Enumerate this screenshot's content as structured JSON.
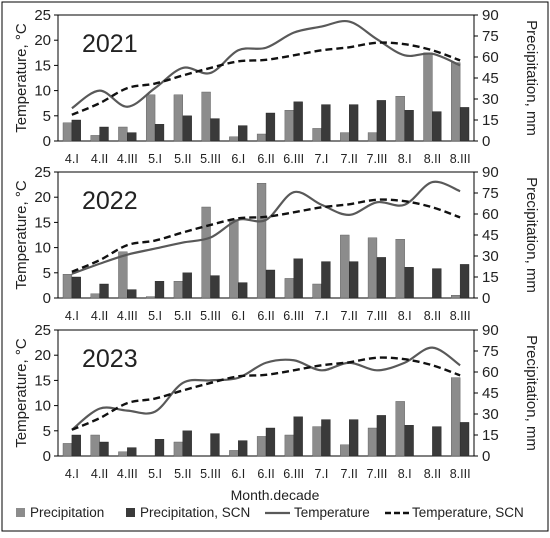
{
  "chart_data": [
    {
      "type": "bar+line",
      "title": "2021",
      "ylabel": "Temperature, °C",
      "y2label": "Precipitation, mm",
      "ylim": [
        0,
        25
      ],
      "y2lim": [
        0,
        90
      ],
      "yticks": [
        0,
        5,
        10,
        15,
        20,
        25
      ],
      "y2ticks": [
        0,
        15,
        30,
        45,
        60,
        75,
        90
      ],
      "categories": [
        "4.I",
        "4.II",
        "4.III",
        "5.I",
        "5.II",
        "5.III",
        "6.I",
        "6.II",
        "6.III",
        "7.I",
        "7.II",
        "7.III",
        "8.I",
        "8.II",
        "8.III"
      ],
      "series": [
        {
          "name": "Precipitation",
          "kind": "bar",
          "axis": "right",
          "values": [
            13,
            4,
            10,
            33,
            33,
            35,
            3,
            5,
            22,
            9,
            6,
            6,
            32,
            63,
            56
          ]
        },
        {
          "name": "Precipitation, SCN",
          "kind": "bar",
          "axis": "right",
          "values": [
            15,
            10,
            6,
            12,
            18,
            16,
            11,
            20,
            28,
            26,
            26,
            29,
            22,
            21,
            24
          ]
        },
        {
          "name": "Temperature",
          "kind": "line",
          "axis": "left",
          "values": [
            6.5,
            10,
            6.8,
            10.5,
            14.5,
            13.5,
            18,
            18.5,
            21.5,
            22.7,
            23.7,
            20.2,
            17,
            17.3,
            15
          ]
        },
        {
          "name": "Temperature, SCN",
          "kind": "dashed-line",
          "axis": "left",
          "values": [
            5.2,
            7.5,
            10.5,
            11.4,
            13,
            14.5,
            15.8,
            16.1,
            17,
            18,
            18.6,
            19.5,
            19.2,
            18,
            16
          ]
        }
      ],
      "grid": false
    },
    {
      "type": "bar+line",
      "title": "2022",
      "ylabel": "Temperature, °C",
      "y2label": "Precipitation, mm",
      "ylim": [
        0,
        25
      ],
      "y2lim": [
        0,
        90
      ],
      "yticks": [
        0,
        5,
        10,
        15,
        20,
        25
      ],
      "y2ticks": [
        0,
        15,
        30,
        45,
        60,
        75,
        90
      ],
      "categories": [
        "4.I",
        "4.II",
        "4.III",
        "5.I",
        "5.II",
        "5.III",
        "6.I",
        "6.II",
        "6.III",
        "7.I",
        "7.II",
        "7.III",
        "8.I",
        "8.II",
        "8.III"
      ],
      "series": [
        {
          "name": "Precipitation",
          "kind": "bar",
          "axis": "right",
          "values": [
            17,
            3,
            33,
            1,
            12,
            65,
            56,
            82,
            14,
            10,
            45,
            43,
            42,
            0,
            2
          ]
        },
        {
          "name": "Precipitation, SCN",
          "kind": "bar",
          "axis": "right",
          "values": [
            15,
            10,
            6,
            12,
            18,
            16,
            11,
            20,
            28,
            26,
            26,
            29,
            22,
            21,
            24
          ]
        },
        {
          "name": "Temperature",
          "kind": "line",
          "axis": "left",
          "values": [
            4.8,
            6.8,
            8.6,
            9.8,
            11,
            12,
            15.5,
            15.5,
            21,
            18.5,
            16.5,
            19,
            18.5,
            23,
            21.2
          ]
        },
        {
          "name": "Temperature, SCN",
          "kind": "dashed-line",
          "axis": "left",
          "values": [
            5.2,
            7.5,
            10.5,
            11.4,
            13,
            14.5,
            15.8,
            16.1,
            17,
            18,
            18.6,
            19.5,
            19.2,
            18,
            16
          ]
        }
      ],
      "grid": false
    },
    {
      "type": "bar+line",
      "title": "2023",
      "ylabel": "Temperature, °C",
      "y2label": "Precipitation, mm",
      "ylim": [
        0,
        25
      ],
      "y2lim": [
        0,
        90
      ],
      "yticks": [
        0,
        5,
        10,
        15,
        20,
        25
      ],
      "y2ticks": [
        0,
        15,
        30,
        45,
        60,
        75,
        90
      ],
      "categories": [
        "4.I",
        "4.II",
        "4.III",
        "5.I",
        "5.II",
        "5.III",
        "6.I",
        "6.II",
        "6.III",
        "7.I",
        "7.II",
        "7.III",
        "8.I",
        "8.II",
        "8.III"
      ],
      "series": [
        {
          "name": "Precipitation",
          "kind": "bar",
          "axis": "right",
          "values": [
            9,
            15,
            3,
            0,
            10,
            0,
            4,
            14,
            15,
            21,
            8,
            20,
            39,
            0,
            56
          ]
        },
        {
          "name": "Precipitation, SCN",
          "kind": "bar",
          "axis": "right",
          "values": [
            15,
            10,
            6,
            12,
            18,
            16,
            11,
            20,
            28,
            26,
            26,
            29,
            22,
            21,
            24
          ]
        },
        {
          "name": "Temperature",
          "kind": "line",
          "axis": "left",
          "values": [
            5.2,
            9.4,
            9,
            8.8,
            14.5,
            15,
            15.5,
            18.5,
            19,
            17,
            18.5,
            17,
            18.5,
            21.5,
            18
          ]
        },
        {
          "name": "Temperature, SCN",
          "kind": "dashed-line",
          "axis": "left",
          "values": [
            5.2,
            7.5,
            10.5,
            11.4,
            13,
            14.5,
            15.8,
            16.1,
            17,
            18,
            18.6,
            19.5,
            19.2,
            18,
            16
          ]
        }
      ],
      "grid": false
    }
  ],
  "xlabel": "Month.decade",
  "legend": {
    "placement": "bottom",
    "entries": [
      "Precipitation",
      "Precipitation, SCN",
      "Temperature",
      "Temperature, SCN"
    ]
  },
  "colors": {
    "precipitation": "#8c8c8c",
    "precipitation_scn": "#3a3a3a",
    "temperature": "#595959",
    "temperature_scn": "#111111",
    "frame": "#000000"
  }
}
